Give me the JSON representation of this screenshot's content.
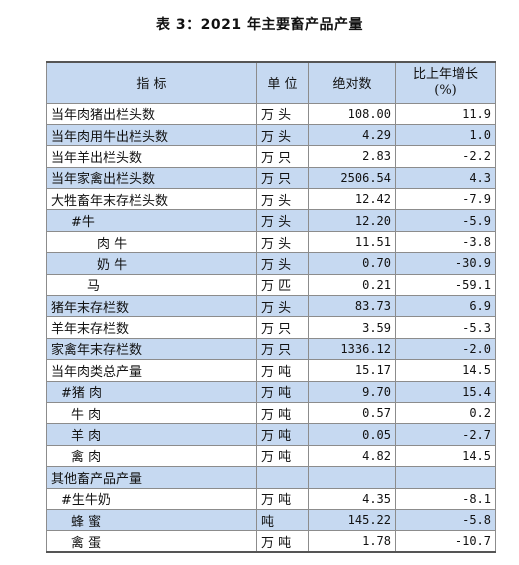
{
  "title": "表 3：2021 年主要畜产品产量",
  "headers": {
    "indicator": "指   标",
    "unit": "单 位",
    "absolute": "绝对数",
    "growth_line1": "比上年增长",
    "growth_line2": "(%)"
  },
  "rows": [
    {
      "name": "当年肉猪出栏头数",
      "unit": "万 头",
      "value": "108.00",
      "growth": "11.9",
      "band": false,
      "indent": ""
    },
    {
      "name": "当年肉用牛出栏头数",
      "unit": "万 头",
      "value": "4.29",
      "growth": "1.0",
      "band": true,
      "indent": ""
    },
    {
      "name": "当年羊出栏头数",
      "unit": "万 只",
      "value": "2.83",
      "growth": "-2.2",
      "band": false,
      "indent": ""
    },
    {
      "name": "当年家禽出栏头数",
      "unit": "万 只",
      "value": "2506.54",
      "growth": "4.3",
      "band": true,
      "indent": ""
    },
    {
      "name": "大牲畜年末存栏头数",
      "unit": "万 头",
      "value": "12.42",
      "growth": "-7.9",
      "band": false,
      "indent": ""
    },
    {
      "name": "#牛",
      "unit": "万 头",
      "value": "12.20",
      "growth": "-5.9",
      "band": true,
      "indent": "ind1"
    },
    {
      "name": "肉  牛",
      "unit": "万 头",
      "value": "11.51",
      "growth": "-3.8",
      "band": false,
      "indent": "ind2"
    },
    {
      "name": "奶  牛",
      "unit": "万 头",
      "value": "0.70",
      "growth": "-30.9",
      "band": true,
      "indent": "ind2"
    },
    {
      "name": "马",
      "unit": "万 匹",
      "value": "0.21",
      "growth": "-59.1",
      "band": false,
      "indent": "ind3"
    },
    {
      "name": "猪年末存栏数",
      "unit": "万 头",
      "value": "83.73",
      "growth": "6.9",
      "band": true,
      "indent": ""
    },
    {
      "name": "羊年末存栏数",
      "unit": "万 只",
      "value": "3.59",
      "growth": "-5.3",
      "band": false,
      "indent": ""
    },
    {
      "name": "家禽年末存栏数",
      "unit": "万 只",
      "value": "1336.12",
      "growth": "-2.0",
      "band": true,
      "indent": ""
    },
    {
      "name": "当年肉类总产量",
      "unit": "万 吨",
      "value": "15.17",
      "growth": "14.5",
      "band": false,
      "indent": ""
    },
    {
      "name": "#猪  肉",
      "unit": "万 吨",
      "value": "9.70",
      "growth": "15.4",
      "band": true,
      "indent": "ind4"
    },
    {
      "name": "牛  肉",
      "unit": "万 吨",
      "value": "0.57",
      "growth": "0.2",
      "band": false,
      "indent": "ind1"
    },
    {
      "name": "羊  肉",
      "unit": "万 吨",
      "value": "0.05",
      "growth": "-2.7",
      "band": true,
      "indent": "ind1"
    },
    {
      "name": "禽  肉",
      "unit": "万 吨",
      "value": "4.82",
      "growth": "14.5",
      "band": false,
      "indent": "ind1"
    },
    {
      "name": "其他畜产品产量",
      "unit": "",
      "value": "",
      "growth": "",
      "band": true,
      "indent": ""
    },
    {
      "name": "#生牛奶",
      "unit": "万 吨",
      "value": "4.35",
      "growth": "-8.1",
      "band": false,
      "indent": "ind4"
    },
    {
      "name": "蜂  蜜",
      "unit": "吨",
      "value": "145.22",
      "growth": "-5.8",
      "band": true,
      "indent": "ind1"
    },
    {
      "name": "禽  蛋",
      "unit": "万 吨",
      "value": "1.78",
      "growth": "-10.7",
      "band": false,
      "indent": "ind1"
    }
  ]
}
